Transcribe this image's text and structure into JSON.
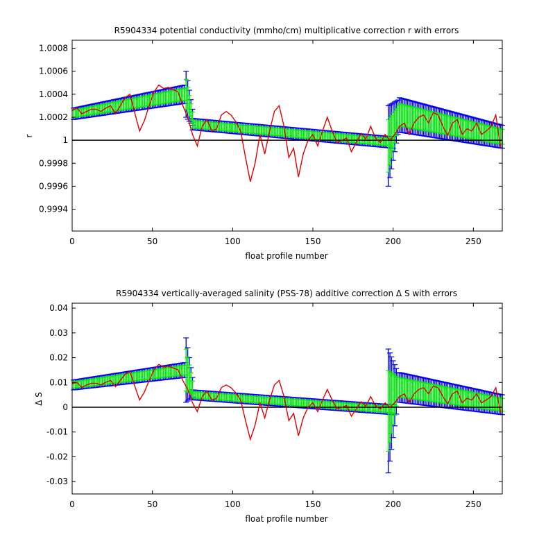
{
  "chart_data": [
    {
      "type": "line",
      "title": "R5904334 potential conductivity (mmho/cm) multiplicative correction r with errors",
      "xlabel": "float profile number",
      "ylabel": "r",
      "xlim": [
        0,
        268
      ],
      "ylim": [
        0.99921,
        1.00087
      ],
      "xticks": [
        0,
        50,
        100,
        150,
        200,
        250
      ],
      "yticks": [
        0.9994,
        0.9996,
        0.9998,
        1,
        1.0002,
        1.0004,
        1.0006,
        1.0008
      ],
      "yticklabels": [
        "0.9994",
        "0.9996",
        "0.9998",
        "1",
        "1.0002",
        "1.0004",
        "1.0006",
        "1.0008"
      ],
      "reference_line": 1,
      "colors": {
        "fit": "#00ee00",
        "errors": "#0000ee",
        "raw": "#dd0000",
        "reference": "#000000"
      },
      "fit_segments": [
        {
          "x": [
            1,
            70
          ],
          "center": [
            1.00023,
            1.0004
          ],
          "err": [
            5e-05,
            8e-05
          ]
        },
        {
          "x": [
            71,
            75
          ],
          "center": [
            1.0004,
            1.0002
          ],
          "err": [
            0.0002,
            7e-05
          ]
        },
        {
          "x": [
            75,
            200
          ],
          "center": [
            1.00014,
            0.99998
          ],
          "err": [
            5e-05,
            5e-05
          ]
        },
        {
          "x": [
            197,
            203
          ],
          "center": [
            0.99995,
            1.0002
          ],
          "err": [
            0.00035,
            0.00015
          ]
        },
        {
          "x": [
            204,
            268
          ],
          "center": [
            1.00022,
            1.00003
          ],
          "err": [
            0.00015,
            0.0001
          ]
        }
      ],
      "raw_series": {
        "x": [
          0,
          3,
          6,
          9,
          12,
          15,
          18,
          21,
          24,
          27,
          30,
          33,
          36,
          39,
          42,
          45,
          48,
          51,
          54,
          57,
          60,
          63,
          66,
          69,
          72,
          75,
          78,
          81,
          84,
          87,
          90,
          93,
          96,
          99,
          102,
          105,
          108,
          111,
          114,
          117,
          120,
          123,
          126,
          129,
          132,
          135,
          138,
          141,
          144,
          147,
          150,
          153,
          156,
          159,
          162,
          165,
          168,
          171,
          174,
          177,
          180,
          183,
          186,
          189,
          192,
          195,
          198,
          201,
          204,
          207,
          210,
          213,
          216,
          219,
          222,
          225,
          228,
          231,
          234,
          237,
          240,
          243,
          246,
          249,
          252,
          255,
          258,
          261,
          264,
          267
        ],
        "y": [
          1.00026,
          1.00028,
          1.00023,
          1.00025,
          1.00027,
          1.00027,
          1.00025,
          1.00028,
          1.0003,
          1.00023,
          1.0003,
          1.00037,
          1.0004,
          1.00024,
          1.00008,
          1.00017,
          1.0003,
          1.00042,
          1.00048,
          1.00045,
          1.00046,
          1.00044,
          1.00042,
          1.0003,
          1.0002,
          1.00005,
          0.99995,
          1.00012,
          1.00018,
          1.00008,
          1.0001,
          1.00022,
          1.00025,
          1.00022,
          1.00016,
          1.00008,
          0.99985,
          0.99964,
          0.9998,
          1.00005,
          0.99988,
          1.00008,
          1.00025,
          1.0003,
          1.00012,
          0.99985,
          0.99993,
          0.99968,
          0.99988,
          1.0,
          1.00005,
          0.99995,
          1.00008,
          1.0002,
          1.00008,
          0.99998,
          1.0,
          1.00002,
          0.9999,
          0.99998,
          1.00006,
          1.00001,
          1.00012,
          1.00002,
          0.99998,
          1.00005,
          1.0,
          1.00005,
          1.00012,
          1.00015,
          1.00005,
          1.00015,
          1.0002,
          1.00022,
          1.00015,
          1.00024,
          1.00022,
          1.00012,
          1.00004,
          1.00015,
          1.00018,
          1.00005,
          1.0001,
          1.00008,
          1.00015,
          1.00005,
          1.00008,
          1.00012,
          1.00022,
          0.99993
        ]
      }
    },
    {
      "type": "line",
      "title": "R5904334 vertically-averaged salinity (PSS-78) additive correction Δ S with errors",
      "xlabel": "float profile number",
      "ylabel": "Δ S",
      "xlim": [
        0,
        268
      ],
      "ylim": [
        -0.035,
        0.042
      ],
      "xticks": [
        0,
        50,
        100,
        150,
        200,
        250
      ],
      "yticks": [
        -0.03,
        -0.02,
        -0.01,
        0,
        0.01,
        0.02,
        0.03,
        0.04
      ],
      "yticklabels": [
        "-0.03",
        "-0.02",
        "-0.01",
        "0",
        "0.01",
        "0.02",
        "0.03",
        "0.04"
      ],
      "reference_line": 0,
      "colors": {
        "fit": "#00ee00",
        "errors": "#0000ee",
        "raw": "#dd0000",
        "reference": "#000000"
      },
      "fit_segments": [
        {
          "x": [
            1,
            70
          ],
          "center": [
            0.009,
            0.015
          ],
          "err": [
            0.002,
            0.003
          ]
        },
        {
          "x": [
            71,
            75
          ],
          "center": [
            0.015,
            0.008
          ],
          "err": [
            0.013,
            0.004
          ]
        },
        {
          "x": [
            75,
            200
          ],
          "center": [
            0.005,
            -0.001
          ],
          "err": [
            0.002,
            0.002
          ]
        },
        {
          "x": [
            197,
            203
          ],
          "center": [
            -0.0015,
            0.008
          ],
          "err": [
            0.025,
            0.006
          ]
        },
        {
          "x": [
            204,
            268
          ],
          "center": [
            0.008,
            0.001
          ],
          "err": [
            0.006,
            0.004
          ]
        }
      ],
      "raw_series": {
        "x": [
          0,
          3,
          6,
          9,
          12,
          15,
          18,
          21,
          24,
          27,
          30,
          33,
          36,
          39,
          42,
          45,
          48,
          51,
          54,
          57,
          60,
          63,
          66,
          69,
          72,
          75,
          78,
          81,
          84,
          87,
          90,
          93,
          96,
          99,
          102,
          105,
          108,
          111,
          114,
          117,
          120,
          123,
          126,
          129,
          132,
          135,
          138,
          141,
          144,
          147,
          150,
          153,
          156,
          159,
          162,
          165,
          168,
          171,
          174,
          177,
          180,
          183,
          186,
          189,
          192,
          195,
          198,
          201,
          204,
          207,
          210,
          213,
          216,
          219,
          222,
          225,
          228,
          231,
          234,
          237,
          240,
          243,
          246,
          249,
          252,
          255,
          258,
          261,
          264,
          267
        ],
        "y": [
          0.0095,
          0.01,
          0.008,
          0.009,
          0.0097,
          0.0097,
          0.009,
          0.0101,
          0.0108,
          0.0083,
          0.0108,
          0.0133,
          0.0144,
          0.0086,
          0.0029,
          0.0061,
          0.0108,
          0.0151,
          0.0173,
          0.0162,
          0.0166,
          0.0158,
          0.0151,
          0.0108,
          0.0072,
          0.0018,
          -0.0018,
          0.0043,
          0.0065,
          0.0029,
          0.0036,
          0.0079,
          0.009,
          0.0079,
          0.0058,
          0.0029,
          -0.0054,
          -0.013,
          -0.0072,
          0.0018,
          -0.0043,
          0.0029,
          0.009,
          0.0108,
          0.0043,
          -0.0054,
          -0.0025,
          -0.0115,
          -0.0043,
          0.0,
          0.0018,
          -0.0018,
          0.0029,
          0.0072,
          0.0029,
          -0.0007,
          0.0,
          0.0007,
          -0.0036,
          -0.0007,
          0.0022,
          0.0004,
          0.0043,
          0.0007,
          -0.0007,
          0.0018,
          0.0,
          0.0018,
          0.0043,
          0.0054,
          0.0018,
          0.0054,
          0.0072,
          0.0079,
          0.0054,
          0.0086,
          0.0079,
          0.0043,
          0.0014,
          0.0054,
          0.0065,
          0.0018,
          0.0036,
          0.0029,
          0.0054,
          0.0018,
          0.0029,
          0.0043,
          0.0079,
          -0.0025
        ]
      }
    }
  ]
}
